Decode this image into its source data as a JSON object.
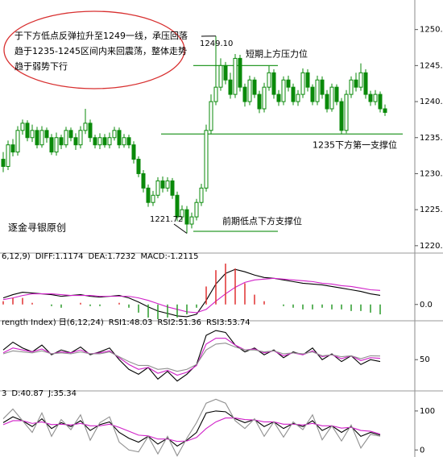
{
  "chart_data": [
    {
      "type": "candlestick",
      "open": [
        1232,
        1231,
        1234,
        1233,
        1236,
        1237,
        1235,
        1236,
        1234,
        1236,
        1235,
        1233,
        1235,
        1234,
        1236,
        1235,
        1234,
        1236,
        1237,
        1235,
        1234,
        1235,
        1234,
        1235,
        1236,
        1234,
        1235,
        1234,
        1232,
        1230,
        1228,
        1226,
        1227,
        1229,
        1228,
        1229,
        1227,
        1224,
        1225,
        1223,
        1224,
        1226,
        1228,
        1236,
        1240,
        1242,
        1245,
        1243,
        1241,
        1246,
        1242,
        1240,
        1243,
        1241,
        1239,
        1242,
        1244,
        1241,
        1240,
        1243,
        1242,
        1240,
        1241,
        1244,
        1242,
        1240,
        1243,
        1241,
        1239,
        1242,
        1240,
        1236,
        1241,
        1243,
        1242,
        1244,
        1241,
        1240,
        1241,
        1239
      ],
      "high": [
        1233,
        1234.6,
        1234.8,
        1236.6,
        1237.5,
        1237.4,
        1236.8,
        1236.5,
        1236.6,
        1236.4,
        1235.5,
        1235.7,
        1235.4,
        1236.5,
        1236.4,
        1235.6,
        1236.6,
        1239,
        1237.5,
        1235.4,
        1235.6,
        1235.5,
        1235.7,
        1236.5,
        1236.4,
        1235.5,
        1235.4,
        1234.5,
        1232.4,
        1230.5,
        1228.5,
        1227.6,
        1229.5,
        1229.6,
        1229.5,
        1229.4,
        1227.5,
        1225.6,
        1225.5,
        1224.6,
        1226.5,
        1228.6,
        1236.8,
        1241,
        1249.1,
        1246,
        1245.5,
        1244,
        1246.6,
        1246.5,
        1242.5,
        1243.6,
        1243.4,
        1241.5,
        1242.6,
        1245,
        1244.5,
        1241.6,
        1243.5,
        1243.6,
        1242.5,
        1241.6,
        1244.6,
        1244.5,
        1242.4,
        1243.6,
        1243.5,
        1241.6,
        1242.5,
        1242.4,
        1240.5,
        1241.6,
        1243.5,
        1244,
        1245.3,
        1244.5,
        1241.5,
        1241.6,
        1241.4,
        1239.6
      ],
      "low": [
        1230.2,
        1230.5,
        1232.4,
        1232.5,
        1235.4,
        1234.5,
        1234.4,
        1233.5,
        1233.6,
        1234.3,
        1232.6,
        1232.5,
        1233.4,
        1233.6,
        1234.5,
        1233.3,
        1233.5,
        1235.5,
        1234.4,
        1233.5,
        1233.4,
        1233.6,
        1233.5,
        1234.6,
        1233.5,
        1233.6,
        1233.5,
        1231.4,
        1229.5,
        1227.4,
        1225.4,
        1225.5,
        1226.6,
        1227.4,
        1227.5,
        1226.5,
        1223.4,
        1223.5,
        1221.72,
        1222.4,
        1223.5,
        1225.5,
        1227.5,
        1235.5,
        1239.5,
        1241.5,
        1242.4,
        1240.4,
        1240.5,
        1241.4,
        1239.3,
        1239.5,
        1240.5,
        1238.4,
        1238.5,
        1241.5,
        1240.4,
        1239.4,
        1239.5,
        1241.4,
        1239.5,
        1239.4,
        1240.5,
        1241.4,
        1239.5,
        1239.5,
        1240.4,
        1238.5,
        1238.6,
        1239.5,
        1235.5,
        1235.6,
        1240.5,
        1241.4,
        1241.5,
        1240.4,
        1239.4,
        1239.5,
        1238.5,
        1238
      ],
      "close": [
        1231,
        1234,
        1233,
        1236,
        1237,
        1235,
        1236,
        1234,
        1236,
        1235,
        1233,
        1235,
        1234,
        1236,
        1235,
        1234,
        1236,
        1237,
        1235,
        1234,
        1235,
        1234,
        1235,
        1236,
        1234,
        1235,
        1234,
        1232,
        1230,
        1228,
        1226,
        1227,
        1229,
        1228,
        1229,
        1227,
        1224,
        1225,
        1223,
        1224,
        1226,
        1228,
        1236,
        1240,
        1242,
        1245,
        1243,
        1241,
        1246,
        1242,
        1240,
        1243,
        1241,
        1239,
        1242,
        1244,
        1241,
        1240,
        1243,
        1242,
        1240,
        1241,
        1244,
        1242,
        1240,
        1243,
        1241,
        1239,
        1242,
        1240,
        1236,
        1241,
        1243,
        1242,
        1244,
        1241,
        1240,
        1241,
        1239,
        1238.5
      ],
      "color": "#0a8a0a",
      "ylim": [
        1219.2,
        1254.1
      ],
      "yticks": [
        {
          "value": 1220,
          "label": "1220.0"
        },
        {
          "value": 1225,
          "label": "1225.0"
        },
        {
          "value": 1230,
          "label": "1230.0"
        },
        {
          "value": 1235,
          "label": "1235.0"
        },
        {
          "value": 1240,
          "label": "1240.0"
        },
        {
          "value": 1245,
          "label": "1245.0"
        },
        {
          "value": 1250,
          "label": "1250.0"
        }
      ],
      "annotation_text": [
        "于下方低点反弹拉升至1249一线，承压回落",
        "趋于1235-1245区间内来回震荡，整体走势",
        "趋于弱势下行"
      ],
      "points": [
        {
          "value": 1249.1,
          "label": "1249.10"
        },
        {
          "value": 1221.72,
          "label": "1221.72"
        }
      ],
      "levels": [
        {
          "value": 1245,
          "label": "短期上方压力位"
        },
        {
          "value": 1235.5,
          "label": "1235下方第一支撑位"
        },
        {
          "value": 1222,
          "label": "前期低点下方支撑位"
        }
      ],
      "watermark": "逐金寻银原创"
    },
    {
      "type": "macd",
      "params": "6,12,9)",
      "ylim": [
        -1.8,
        5.5
      ],
      "yticks": [
        {
          "value": 0,
          "label": "0.0"
        }
      ],
      "series": [
        {
          "name": "DIFF:1.1174",
          "color": "#000000",
          "values": [
            0.8,
            1.2,
            1.5,
            1.4,
            1.3,
            1.2,
            1.0,
            1.1,
            1.2,
            1.0,
            0.9,
            1.0,
            1.1,
            0.8,
            0.3,
            -0.3,
            -0.8,
            -1.1,
            -1.4,
            -1.5,
            -1.2,
            0.5,
            2.5,
            3.8,
            4.3,
            4.0,
            3.6,
            3.3,
            3.2,
            3.0,
            2.8,
            2.6,
            2.5,
            2.4,
            2.2,
            2.0,
            1.8,
            1.6,
            1.3,
            1.1174
          ]
        },
        {
          "name": "DEA:1.7232",
          "color": "#d020c8",
          "values": [
            0.6,
            0.8,
            1.1,
            1.3,
            1.3,
            1.3,
            1.2,
            1.1,
            1.1,
            1.1,
            1.0,
            1.0,
            1.0,
            1.0,
            0.8,
            0.5,
            0.1,
            -0.3,
            -0.6,
            -0.9,
            -1.0,
            -0.6,
            0.4,
            1.3,
            2.1,
            2.7,
            3.0,
            3.1,
            3.2,
            3.1,
            3.0,
            2.9,
            2.8,
            2.6,
            2.5,
            2.3,
            2.2,
            2.0,
            1.8,
            1.7232
          ]
        },
        {
          "name": "MACD:-1.2115",
          "color": "#808080",
          "bars": true,
          "values": [
            0.4,
            0.8,
            0.8,
            0.2,
            0,
            -0.2,
            -0.4,
            0,
            0.2,
            -0.2,
            -0.2,
            0,
            0.2,
            -0.4,
            -1.0,
            -1.6,
            -1.8,
            -1.6,
            -1.6,
            -1.2,
            -0.4,
            2.2,
            4.2,
            5.0,
            4.4,
            2.6,
            1.2,
            0.4,
            0,
            -0.2,
            -0.4,
            -0.6,
            -0.6,
            -0.4,
            -0.6,
            -0.6,
            -0.8,
            -0.8,
            -1.0,
            -1.2115
          ]
        }
      ]
    },
    {
      "type": "rsi",
      "params": "rength Index) 日(6,12,24)",
      "ylim": [
        22,
        85
      ],
      "yticks": [
        50
      ],
      "series": [
        {
          "name": "RSI1:48.03",
          "color": "#000000",
          "values": [
            60,
            68,
            62,
            58,
            65,
            55,
            60,
            57,
            63,
            55,
            58,
            62,
            50,
            40,
            35,
            42,
            30,
            38,
            28,
            35,
            45,
            75,
            80,
            78,
            65,
            58,
            62,
            55,
            60,
            52,
            58,
            55,
            62,
            50,
            56,
            48,
            54,
            45,
            50,
            48.03
          ]
        },
        {
          "name": "RSI2:51.36",
          "color": "#d020c8",
          "values": [
            57,
            62,
            60,
            58,
            61,
            56,
            58,
            57,
            60,
            56,
            57,
            59,
            52,
            45,
            40,
            42,
            36,
            39,
            34,
            37,
            44,
            66,
            72,
            72,
            65,
            60,
            61,
            57,
            59,
            54,
            57,
            55,
            59,
            53,
            55,
            51,
            54,
            49,
            52,
            51.36
          ]
        },
        {
          "name": "RSI3:53.74",
          "color": "#909090",
          "values": [
            56,
            59,
            58,
            57,
            59,
            56,
            57,
            56,
            58,
            56,
            56,
            58,
            53,
            48,
            44,
            44,
            40,
            41,
            38,
            40,
            45,
            60,
            66,
            67,
            63,
            60,
            60,
            58,
            59,
            56,
            57,
            56,
            58,
            54,
            55,
            53,
            54,
            51,
            54,
            53.74
          ]
        }
      ]
    },
    {
      "type": "kdj",
      "ylim": [
        -16,
        137
      ],
      "yticks": [
        0,
        100
      ],
      "series": [
        {
          "name": "3",
          "color": "#000000",
          "values": [
            70,
            85,
            75,
            60,
            80,
            55,
            70,
            60,
            75,
            50,
            65,
            72,
            45,
            30,
            20,
            35,
            15,
            30,
            10,
            25,
            45,
            95,
            100,
            98,
            80,
            70,
            78,
            60,
            72,
            55,
            68,
            60,
            75,
            50,
            62,
            45,
            60,
            35,
            45,
            38
          ]
        },
        {
          "name": "D:40.87",
          "color": "#d020c8",
          "values": [
            65,
            75,
            75,
            68,
            72,
            65,
            66,
            64,
            68,
            62,
            62,
            66,
            58,
            48,
            38,
            36,
            28,
            28,
            22,
            23,
            32,
            55,
            72,
            82,
            82,
            78,
            77,
            72,
            72,
            66,
            66,
            64,
            68,
            62,
            62,
            56,
            58,
            50,
            48,
            40.87
          ]
        },
        {
          "name": "J:35.34",
          "color": "#909090",
          "values": [
            80,
            105,
            75,
            45,
            95,
            35,
            78,
            52,
            90,
            25,
            70,
            85,
            20,
            0,
            -5,
            35,
            -10,
            35,
            -15,
            30,
            70,
            120,
            130,
            120,
            75,
            55,
            80,
            35,
            72,
            33,
            72,
            52,
            90,
            26,
            62,
            23,
            64,
            5,
            40,
            35.34
          ]
        }
      ]
    }
  ]
}
